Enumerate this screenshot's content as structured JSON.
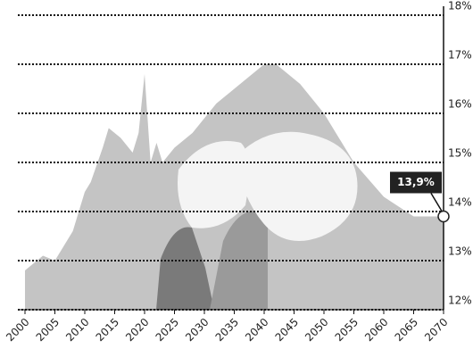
{
  "chart_data": {
    "type": "area",
    "x": [
      2000,
      2003,
      2005,
      2008,
      2010,
      2011,
      2013,
      2014,
      2016,
      2018,
      2019,
      2020,
      2021,
      2022,
      2023,
      2025,
      2028,
      2032,
      2036,
      2040,
      2042,
      2046,
      2050,
      2055,
      2060,
      2065,
      2070
    ],
    "series": [
      {
        "color": "#c4c4c4",
        "values": [
          12.8,
          13.1,
          13.0,
          13.6,
          14.4,
          14.6,
          15.3,
          15.7,
          15.5,
          15.2,
          15.6,
          16.8,
          15.0,
          15.4,
          15.0,
          15.3,
          15.6,
          16.2,
          16.6,
          17.0,
          17.0,
          16.6,
          16.0,
          15.0,
          14.3,
          13.9,
          13.9
        ]
      }
    ],
    "xlim": [
      2000,
      2070
    ],
    "xticks": [
      2000,
      2005,
      2010,
      2015,
      2020,
      2025,
      2030,
      2035,
      2040,
      2045,
      2050,
      2055,
      2060,
      2065,
      2070
    ],
    "ylim": [
      12,
      18
    ],
    "yticks": [
      {
        "value": 12,
        "label": "12%"
      },
      {
        "value": 13,
        "label": "13%"
      },
      {
        "value": 14,
        "label": "14%"
      },
      {
        "value": 15,
        "label": "15%"
      },
      {
        "value": 16,
        "label": "16%"
      },
      {
        "value": 17,
        "label": "17%"
      },
      {
        "value": 18,
        "label": "18%"
      }
    ],
    "grid": true,
    "annotation": "13,9%"
  }
}
